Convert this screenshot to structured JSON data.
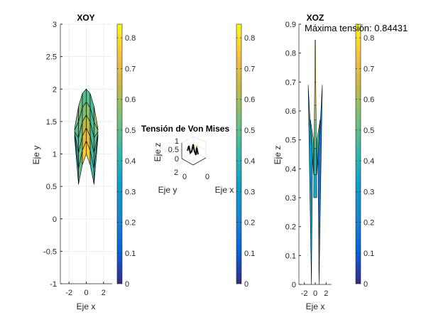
{
  "chart_data": [
    {
      "type": "surface",
      "view": "top (XOY)",
      "title": "XOY",
      "xlabel": "Eje x",
      "ylabel": "Eje y",
      "xlim": [
        -3,
        3
      ],
      "ylim": [
        -1,
        3
      ],
      "xticks": [
        "-2",
        "0",
        "2"
      ],
      "yticks": [
        "-1",
        "-0.5",
        "0",
        "0.5",
        "1",
        "1.5",
        "2",
        "2.5",
        "3"
      ],
      "grid": true,
      "colormap": "parula",
      "colorbar": {
        "range": [
          0,
          0.84431
        ],
        "ticks": [
          "0",
          "0.1",
          "0.2",
          "0.3",
          "0.4",
          "0.5",
          "0.6",
          "0.7",
          "0.8"
        ]
      }
    },
    {
      "type": "surface",
      "view": "3d",
      "title": "Tensión de Von Mises",
      "xlabel": "Eje x",
      "ylabel": "Eje y",
      "zlabel": "Eje z",
      "xticks": [
        "0"
      ],
      "yticks": [
        "0",
        "2"
      ],
      "zticks": [
        "0",
        "0.5",
        "1"
      ],
      "grid": true,
      "colorbar": {
        "range": [
          0,
          0.84431
        ],
        "ticks": [
          "0",
          "0.1",
          "0.2",
          "0.3",
          "0.4",
          "0.5",
          "0.6",
          "0.7",
          "0.8"
        ]
      }
    },
    {
      "type": "surface",
      "view": "side (XOZ)",
      "title": "XOZ",
      "xlabel": "Eje x",
      "ylabel": "Eje z",
      "xlim": [
        -3,
        3
      ],
      "ylim": [
        0,
        0.9
      ],
      "xticks": [
        "-2",
        "0",
        "2"
      ],
      "yticks": [
        "0",
        "0.1",
        "0.2",
        "0.3",
        "0.4",
        "0.5",
        "0.6",
        "0.7",
        "0.8",
        "0.9"
      ],
      "annotation": "Máxima tensión: 0.84431",
      "max_value": 0.84431,
      "colorbar": {
        "range": [
          0,
          0.84431
        ],
        "ticks": [
          "0",
          "0.1",
          "0.2",
          "0.3",
          "0.4",
          "0.5",
          "0.6",
          "0.7",
          "0.8"
        ]
      }
    }
  ]
}
